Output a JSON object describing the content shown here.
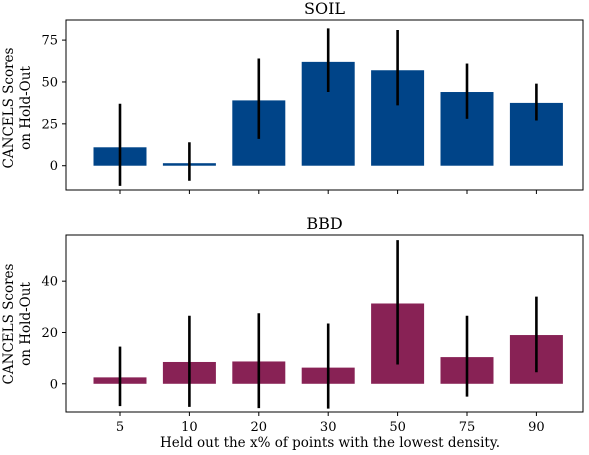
{
  "figure": {
    "xlabel": "Held out the x% of points with the lowest density.",
    "ylabel_line1": "CANCELS Scores",
    "ylabel_line2": "on Hold-Out"
  },
  "chart_data": [
    {
      "type": "bar",
      "title": "SOIL",
      "categories": [
        "5",
        "10",
        "20",
        "30",
        "50",
        "75",
        "90"
      ],
      "values": [
        11,
        1.5,
        39,
        62,
        57,
        44,
        37.5
      ],
      "error_low": [
        -12,
        -9,
        16,
        44,
        36,
        28,
        27
      ],
      "error_high": [
        37,
        14,
        64,
        82,
        81,
        61,
        49
      ],
      "color": "#004488",
      "ylim": [
        -14.5,
        87
      ],
      "yticks": [
        0,
        25,
        50,
        75
      ],
      "show_xticklabels": false,
      "grid": false
    },
    {
      "type": "bar",
      "title": "BBD",
      "categories": [
        "5",
        "10",
        "20",
        "30",
        "50",
        "75",
        "90"
      ],
      "values": [
        2.5,
        8.5,
        8.7,
        6.3,
        31.3,
        10.4,
        19
      ],
      "error_low": [
        -8.7,
        -9,
        -9.5,
        -9.7,
        7.5,
        -5,
        4.5
      ],
      "error_high": [
        14.5,
        26.5,
        27.5,
        23.5,
        56,
        26.5,
        34
      ],
      "color": "#882255",
      "ylim": [
        -11,
        58
      ],
      "yticks": [
        0,
        20,
        40
      ],
      "show_xticklabels": true,
      "grid": false
    }
  ]
}
